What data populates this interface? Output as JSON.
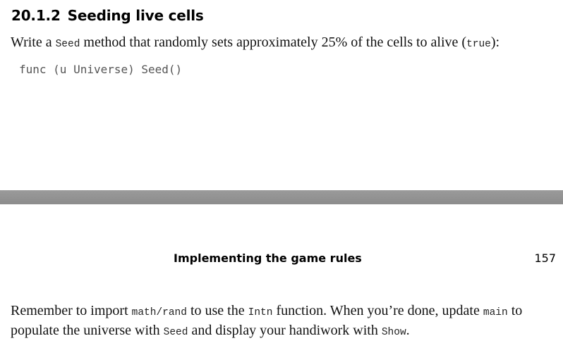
{
  "section": {
    "number": "20.1.2",
    "title": "Seeding live cells"
  },
  "intro": {
    "text1": "Write a ",
    "code1": "Seed",
    "text2": " method that randomly sets approximately 25% of the cells to alive (",
    "code2": "true",
    "text3": "):"
  },
  "code_block": "func (u Universe) Seed()",
  "running_head": "Implementing the game rules",
  "page_number": "157",
  "closing": {
    "line1": {
      "t1": "Remember to import ",
      "c1": "math/rand",
      "t2": " to use the ",
      "c2": "Intn",
      "t3": " function. When you’re done, update ",
      "c3": "main",
      "t4": " to"
    },
    "line2": {
      "t1": "populate the universe with ",
      "c1": "Seed",
      "t2": " and display your handiwork with ",
      "c2": "Show",
      "t3": "."
    }
  }
}
